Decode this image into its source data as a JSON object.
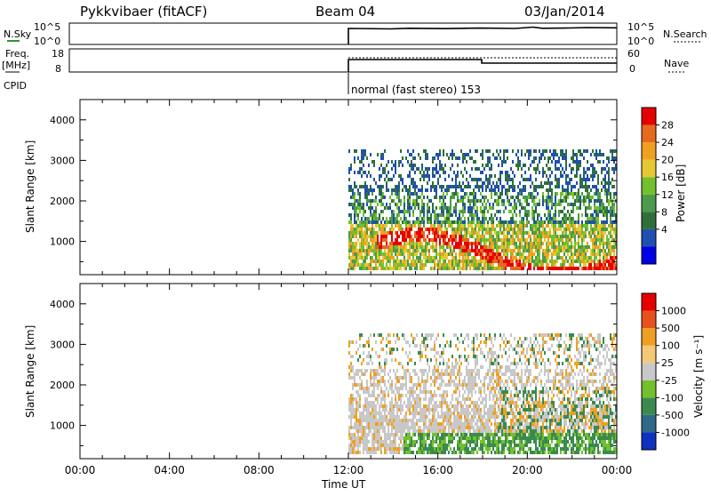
{
  "header": {
    "radar": "Pykkvibaer (fitACF)",
    "beam": "Beam 04",
    "date": "03/Jan/2014"
  },
  "top_panels": {
    "nsky": {
      "label": "N.Sky",
      "ticks": [
        "10^5",
        "10^0"
      ]
    },
    "nsearch": {
      "label": "N.Search",
      "ticks": [
        "10^5",
        "10^0"
      ]
    },
    "freq": {
      "label_line1": "Freq.",
      "label_line2": "[MHz]",
      "ticks": [
        "18",
        "8"
      ]
    },
    "nave": {
      "label": "Nave",
      "ticks": [
        "60",
        "0"
      ]
    },
    "cpid": {
      "label": "CPID",
      "text": "normal (fast stereo) 153"
    }
  },
  "colors": {
    "power_scale": [
      "#0000e6",
      "#1f4fb0",
      "#2f6f3a",
      "#4c9a4c",
      "#73c02d",
      "#e6c832",
      "#f0a020",
      "#e66a1e",
      "#e60000"
    ],
    "velocity_scale": [
      "#e60000",
      "#e8501e",
      "#f0a020",
      "#f5c878",
      "#c8c8c8",
      "#73c02d",
      "#3a8a50",
      "#2f6a8a",
      "#1030c0"
    ],
    "frame": "#000000"
  },
  "chart_data": [
    {
      "type": "line",
      "title": "N.Sky / N.Search",
      "xlabel": "",
      "ylabel": "N.Sky",
      "ylabel_right": "N.Search",
      "ylim": [
        1,
        100000
      ],
      "yscale": "log",
      "x": [
        "12:00",
        "14:00",
        "16:00",
        "18:00",
        "20:00",
        "22:00",
        "24:00"
      ],
      "series": [
        {
          "name": "N.Sky",
          "values": [
            10000,
            11000,
            10500,
            11000,
            10800,
            12000,
            11500
          ]
        }
      ]
    },
    {
      "type": "line",
      "title": "Freq. / Nave",
      "ylabel": "Freq. [MHz]",
      "ylabel_right": "Nave",
      "ylim": [
        8,
        18
      ],
      "x": [
        "12:00",
        "18:00",
        "18:00",
        "24:00"
      ],
      "series": [
        {
          "name": "Freq.",
          "values": [
            15,
            15,
            13.5,
            13.5
          ]
        },
        {
          "name": "Nave",
          "values": [
            44,
            44,
            44,
            44
          ]
        }
      ]
    },
    {
      "type": "heatmap",
      "xlabel": "",
      "ylabel": "Slant Range [km]",
      "x_ticks": [
        "00:00",
        "04:00",
        "08:00",
        "12:00",
        "16:00",
        "20:00",
        "00:00"
      ],
      "y_ticks": [
        "1000",
        "2000",
        "3000",
        "4000"
      ],
      "xlim": [
        "00:00",
        "24:00"
      ],
      "ylim": [
        180,
        4500
      ],
      "colorbar_label": "Power [dB]",
      "colorbar_ticks": [
        "28",
        "24",
        "20",
        "16",
        "12",
        "8",
        "4"
      ],
      "data_start": "12:00"
    },
    {
      "type": "heatmap",
      "xlabel": "Time UT",
      "ylabel": "Slant Range [km]",
      "x_ticks": [
        "00:00",
        "04:00",
        "08:00",
        "12:00",
        "16:00",
        "20:00",
        "00:00"
      ],
      "y_ticks": [
        "1000",
        "2000",
        "3000",
        "4000"
      ],
      "xlim": [
        "00:00",
        "24:00"
      ],
      "ylim": [
        180,
        4500
      ],
      "colorbar_label": "Velocity [m s⁻¹]",
      "colorbar_ticks": [
        "1000",
        "500",
        "100",
        "25",
        "-25",
        "-100",
        "-500",
        "-1000"
      ],
      "data_start": "12:00"
    }
  ]
}
